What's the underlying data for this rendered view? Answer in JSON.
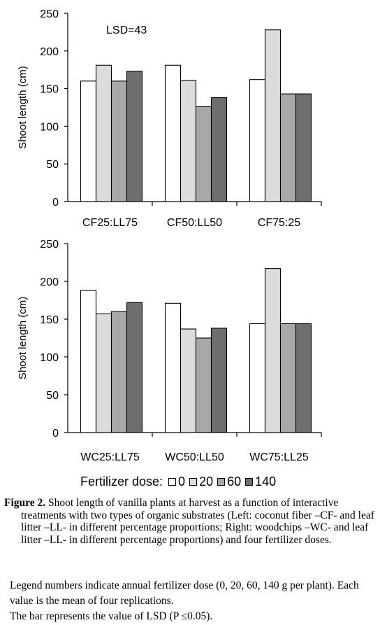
{
  "chart_data": [
    {
      "type": "bar",
      "ylabel": "Shoot length (cm)",
      "xlabel": "",
      "ylim": [
        0,
        250
      ],
      "yticks": [
        0,
        50,
        100,
        150,
        200,
        250
      ],
      "annotation": "LSD=43",
      "categories": [
        "CF25:LL75",
        "CF50:LL50",
        "CF75:25"
      ],
      "series": [
        {
          "name": "0",
          "color": "#ffffff",
          "values": [
            160,
            181,
            162
          ]
        },
        {
          "name": "20",
          "color": "#dcdcdc",
          "values": [
            181,
            161,
            228
          ]
        },
        {
          "name": "60",
          "color": "#a8a8a8",
          "values": [
            160,
            126,
            143
          ]
        },
        {
          "name": "140",
          "color": "#6e6e6e",
          "values": [
            173,
            138,
            143
          ]
        }
      ]
    },
    {
      "type": "bar",
      "ylabel": "Shoot length (cm)",
      "xlabel": "",
      "ylim": [
        0,
        250
      ],
      "yticks": [
        0,
        50,
        100,
        150,
        200,
        250
      ],
      "categories": [
        "WC25:LL75",
        "WC50:LL50",
        "WC75:LL25"
      ],
      "series": [
        {
          "name": "0",
          "color": "#ffffff",
          "values": [
            188,
            171,
            144
          ]
        },
        {
          "name": "20",
          "color": "#dcdcdc",
          "values": [
            157,
            137,
            217
          ]
        },
        {
          "name": "60",
          "color": "#a8a8a8",
          "values": [
            160,
            125,
            144
          ]
        },
        {
          "name": "140",
          "color": "#6e6e6e",
          "values": [
            172,
            138,
            144
          ]
        }
      ]
    }
  ],
  "legend": {
    "title": "Fertilizer dose:",
    "items": [
      {
        "label": "0",
        "color": "#ffffff"
      },
      {
        "label": "20",
        "color": "#dcdcdc"
      },
      {
        "label": "60",
        "color": "#a8a8a8"
      },
      {
        "label": "140",
        "color": "#6e6e6e"
      }
    ]
  },
  "caption": {
    "label": "Figure 2.",
    "text": "Shoot length of vanilla plants at harvest as a function of interactive treatments with two types of organic substrates (Left: coconut fiber –CF- and leaf litter –LL- in different percentage proportions; Right: woodchips –WC- and leaf litter –LL- in different percentage proportions) and four fertilizer doses."
  },
  "notes": [
    "Legend numbers indicate annual fertilizer dose (0, 20, 60, 140 g per plant). Each value is the mean of four replications.",
    "The bar represents the value of LSD (P ≤0.05)."
  ]
}
